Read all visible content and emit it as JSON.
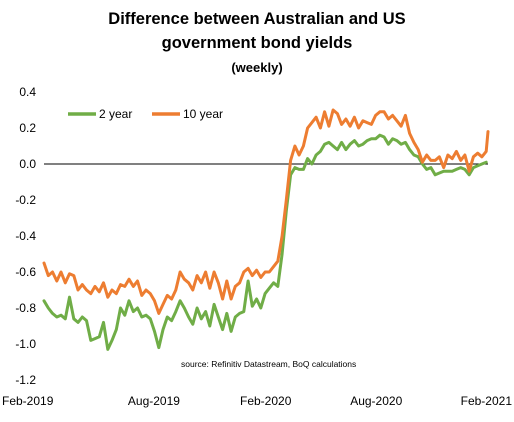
{
  "chart_data": {
    "type": "line",
    "title_line1": "Difference between Australian and US",
    "title_line2": "government bond yields",
    "subtitle": "(weekly)",
    "xlabel": "",
    "ylabel": "",
    "ylim": [
      -1.2,
      0.4
    ],
    "yticks": [
      0.4,
      0.2,
      0.0,
      -0.2,
      -0.4,
      -0.6,
      -0.8,
      -1.0,
      -1.2
    ],
    "ytick_labels": [
      "0.4",
      "0.2",
      "0.0",
      "-0.2",
      "-0.4",
      "-0.6",
      "-0.8",
      "-1.0",
      "-1.2"
    ],
    "x_start": "2019-02-01",
    "x_end": "2021-02-01",
    "xticks": [
      "2019-02-01",
      "2019-08-01",
      "2020-02-01",
      "2020-08-01",
      "2021-02-01"
    ],
    "xtick_labels": [
      "Feb-2019",
      "Aug-2019",
      "Feb-2020",
      "Aug-2020",
      "Feb-2021"
    ],
    "grid": false,
    "legend_placement": "top-left",
    "source_note": "source:  Refinitiv Datastream, BoQ calculations",
    "series": [
      {
        "name": "2 year",
        "color": "#70ad47",
        "points": [
          [
            "2019-02-01",
            -0.76
          ],
          [
            "2019-02-08",
            -0.8
          ],
          [
            "2019-02-15",
            -0.83
          ],
          [
            "2019-02-22",
            -0.85
          ],
          [
            "2019-03-01",
            -0.84
          ],
          [
            "2019-03-08",
            -0.86
          ],
          [
            "2019-03-15",
            -0.74
          ],
          [
            "2019-03-22",
            -0.86
          ],
          [
            "2019-03-29",
            -0.88
          ],
          [
            "2019-04-05",
            -0.85
          ],
          [
            "2019-04-12",
            -0.87
          ],
          [
            "2019-04-19",
            -0.98
          ],
          [
            "2019-04-26",
            -0.97
          ],
          [
            "2019-05-03",
            -0.96
          ],
          [
            "2019-05-10",
            -0.88
          ],
          [
            "2019-05-17",
            -1.03
          ],
          [
            "2019-05-24",
            -0.98
          ],
          [
            "2019-05-31",
            -0.92
          ],
          [
            "2019-06-07",
            -0.8
          ],
          [
            "2019-06-14",
            -0.84
          ],
          [
            "2019-06-21",
            -0.76
          ],
          [
            "2019-06-28",
            -0.82
          ],
          [
            "2019-07-05",
            -0.8
          ],
          [
            "2019-07-12",
            -0.85
          ],
          [
            "2019-07-19",
            -0.84
          ],
          [
            "2019-07-26",
            -0.86
          ],
          [
            "2019-08-02",
            -0.93
          ],
          [
            "2019-08-09",
            -1.02
          ],
          [
            "2019-08-16",
            -0.92
          ],
          [
            "2019-08-23",
            -0.85
          ],
          [
            "2019-08-30",
            -0.87
          ],
          [
            "2019-09-06",
            -0.82
          ],
          [
            "2019-09-13",
            -0.76
          ],
          [
            "2019-09-20",
            -0.8
          ],
          [
            "2019-09-27",
            -0.85
          ],
          [
            "2019-10-04",
            -0.89
          ],
          [
            "2019-10-11",
            -0.8
          ],
          [
            "2019-10-18",
            -0.86
          ],
          [
            "2019-10-25",
            -0.82
          ],
          [
            "2019-11-01",
            -0.9
          ],
          [
            "2019-11-08",
            -0.78
          ],
          [
            "2019-11-15",
            -0.85
          ],
          [
            "2019-11-22",
            -0.92
          ],
          [
            "2019-11-29",
            -0.83
          ],
          [
            "2019-12-06",
            -0.93
          ],
          [
            "2019-12-13",
            -0.85
          ],
          [
            "2019-12-20",
            -0.83
          ],
          [
            "2019-12-27",
            -0.82
          ],
          [
            "2020-01-03",
            -0.65
          ],
          [
            "2020-01-10",
            -0.79
          ],
          [
            "2020-01-17",
            -0.75
          ],
          [
            "2020-01-24",
            -0.8
          ],
          [
            "2020-01-31",
            -0.72
          ],
          [
            "2020-02-07",
            -0.69
          ],
          [
            "2020-02-14",
            -0.66
          ],
          [
            "2020-02-21",
            -0.68
          ],
          [
            "2020-02-28",
            -0.5
          ],
          [
            "2020-03-06",
            -0.26
          ],
          [
            "2020-03-13",
            -0.06
          ],
          [
            "2020-03-20",
            -0.02
          ],
          [
            "2020-03-27",
            -0.03
          ],
          [
            "2020-04-03",
            -0.03
          ],
          [
            "2020-04-10",
            0.03
          ],
          [
            "2020-04-17",
            0.0
          ],
          [
            "2020-04-24",
            0.05
          ],
          [
            "2020-05-01",
            0.07
          ],
          [
            "2020-05-08",
            0.11
          ],
          [
            "2020-05-15",
            0.12
          ],
          [
            "2020-05-22",
            0.1
          ],
          [
            "2020-05-29",
            0.08
          ],
          [
            "2020-06-05",
            0.12
          ],
          [
            "2020-06-12",
            0.08
          ],
          [
            "2020-06-19",
            0.11
          ],
          [
            "2020-06-26",
            0.13
          ],
          [
            "2020-07-03",
            0.1
          ],
          [
            "2020-07-10",
            0.11
          ],
          [
            "2020-07-17",
            0.13
          ],
          [
            "2020-07-24",
            0.14
          ],
          [
            "2020-07-31",
            0.14
          ],
          [
            "2020-08-07",
            0.16
          ],
          [
            "2020-08-14",
            0.15
          ],
          [
            "2020-08-21",
            0.11
          ],
          [
            "2020-08-28",
            0.14
          ],
          [
            "2020-09-04",
            0.13
          ],
          [
            "2020-09-11",
            0.11
          ],
          [
            "2020-09-18",
            0.12
          ],
          [
            "2020-09-25",
            0.08
          ],
          [
            "2020-10-02",
            0.05
          ],
          [
            "2020-10-09",
            0.04
          ],
          [
            "2020-10-16",
            0.0
          ],
          [
            "2020-10-23",
            -0.03
          ],
          [
            "2020-10-30",
            -0.02
          ],
          [
            "2020-11-06",
            -0.06
          ],
          [
            "2020-11-13",
            -0.05
          ],
          [
            "2020-11-20",
            -0.04
          ],
          [
            "2020-11-27",
            -0.04
          ],
          [
            "2020-12-04",
            -0.04
          ],
          [
            "2020-12-11",
            -0.03
          ],
          [
            "2020-12-18",
            -0.02
          ],
          [
            "2020-12-25",
            -0.03
          ],
          [
            "2021-01-01",
            -0.06
          ],
          [
            "2021-01-08",
            -0.02
          ],
          [
            "2021-01-15",
            -0.01
          ],
          [
            "2021-01-22",
            0.0
          ],
          [
            "2021-01-29",
            0.01
          ]
        ]
      },
      {
        "name": "10 year",
        "color": "#ed7d31",
        "points": [
          [
            "2019-02-01",
            -0.55
          ],
          [
            "2019-02-08",
            -0.62
          ],
          [
            "2019-02-15",
            -0.6
          ],
          [
            "2019-02-22",
            -0.65
          ],
          [
            "2019-03-01",
            -0.6
          ],
          [
            "2019-03-08",
            -0.66
          ],
          [
            "2019-03-15",
            -0.61
          ],
          [
            "2019-03-22",
            -0.62
          ],
          [
            "2019-03-29",
            -0.7
          ],
          [
            "2019-04-05",
            -0.67
          ],
          [
            "2019-04-12",
            -0.7
          ],
          [
            "2019-04-19",
            -0.72
          ],
          [
            "2019-04-26",
            -0.68
          ],
          [
            "2019-05-03",
            -0.71
          ],
          [
            "2019-05-10",
            -0.66
          ],
          [
            "2019-05-17",
            -0.74
          ],
          [
            "2019-05-24",
            -0.7
          ],
          [
            "2019-05-31",
            -0.72
          ],
          [
            "2019-06-07",
            -0.67
          ],
          [
            "2019-06-14",
            -0.68
          ],
          [
            "2019-06-21",
            -0.64
          ],
          [
            "2019-06-28",
            -0.68
          ],
          [
            "2019-07-05",
            -0.65
          ],
          [
            "2019-07-12",
            -0.73
          ],
          [
            "2019-07-19",
            -0.7
          ],
          [
            "2019-07-26",
            -0.72
          ],
          [
            "2019-08-02",
            -0.76
          ],
          [
            "2019-08-09",
            -0.83
          ],
          [
            "2019-08-16",
            -0.78
          ],
          [
            "2019-08-23",
            -0.73
          ],
          [
            "2019-08-30",
            -0.75
          ],
          [
            "2019-09-06",
            -0.7
          ],
          [
            "2019-09-13",
            -0.6
          ],
          [
            "2019-09-20",
            -0.64
          ],
          [
            "2019-09-27",
            -0.66
          ],
          [
            "2019-10-04",
            -0.7
          ],
          [
            "2019-10-11",
            -0.62
          ],
          [
            "2019-10-18",
            -0.66
          ],
          [
            "2019-10-25",
            -0.6
          ],
          [
            "2019-11-01",
            -0.69
          ],
          [
            "2019-11-08",
            -0.6
          ],
          [
            "2019-11-15",
            -0.66
          ],
          [
            "2019-11-22",
            -0.75
          ],
          [
            "2019-11-29",
            -0.65
          ],
          [
            "2019-12-06",
            -0.75
          ],
          [
            "2019-12-13",
            -0.68
          ],
          [
            "2019-12-20",
            -0.66
          ],
          [
            "2019-12-27",
            -0.6
          ],
          [
            "2020-01-03",
            -0.58
          ],
          [
            "2020-01-10",
            -0.62
          ],
          [
            "2020-01-17",
            -0.59
          ],
          [
            "2020-01-24",
            -0.63
          ],
          [
            "2020-01-31",
            -0.6
          ],
          [
            "2020-02-07",
            -0.6
          ],
          [
            "2020-02-14",
            -0.57
          ],
          [
            "2020-02-21",
            -0.54
          ],
          [
            "2020-02-28",
            -0.4
          ],
          [
            "2020-03-06",
            -0.2
          ],
          [
            "2020-03-13",
            0.02
          ],
          [
            "2020-03-20",
            0.1
          ],
          [
            "2020-03-27",
            0.05
          ],
          [
            "2020-04-03",
            0.1
          ],
          [
            "2020-04-10",
            0.2
          ],
          [
            "2020-04-17",
            0.23
          ],
          [
            "2020-04-24",
            0.26
          ],
          [
            "2020-05-01",
            0.2
          ],
          [
            "2020-05-08",
            0.29
          ],
          [
            "2020-05-15",
            0.21
          ],
          [
            "2020-05-22",
            0.3
          ],
          [
            "2020-05-29",
            0.28
          ],
          [
            "2020-06-05",
            0.22
          ],
          [
            "2020-06-12",
            0.25
          ],
          [
            "2020-06-19",
            0.21
          ],
          [
            "2020-06-26",
            0.26
          ],
          [
            "2020-07-03",
            0.2
          ],
          [
            "2020-07-10",
            0.24
          ],
          [
            "2020-07-17",
            0.23
          ],
          [
            "2020-07-24",
            0.22
          ],
          [
            "2020-07-31",
            0.27
          ],
          [
            "2020-08-07",
            0.29
          ],
          [
            "2020-08-14",
            0.29
          ],
          [
            "2020-08-21",
            0.25
          ],
          [
            "2020-08-28",
            0.27
          ],
          [
            "2020-09-04",
            0.24
          ],
          [
            "2020-09-11",
            0.21
          ],
          [
            "2020-09-18",
            0.27
          ],
          [
            "2020-09-25",
            0.17
          ],
          [
            "2020-10-02",
            0.12
          ],
          [
            "2020-10-09",
            0.08
          ],
          [
            "2020-10-16",
            0.01
          ],
          [
            "2020-10-23",
            0.05
          ],
          [
            "2020-10-30",
            0.02
          ],
          [
            "2020-11-06",
            0.02
          ],
          [
            "2020-11-13",
            0.04
          ],
          [
            "2020-11-20",
            -0.02
          ],
          [
            "2020-11-27",
            0.05
          ],
          [
            "2020-12-04",
            0.03
          ],
          [
            "2020-12-11",
            0.07
          ],
          [
            "2020-12-18",
            0.02
          ],
          [
            "2020-12-25",
            0.05
          ],
          [
            "2021-01-01",
            -0.04
          ],
          [
            "2021-01-08",
            0.04
          ],
          [
            "2021-01-15",
            0.06
          ],
          [
            "2021-01-22",
            0.04
          ],
          [
            "2021-01-29",
            0.07
          ],
          [
            "2021-02-01",
            0.18
          ]
        ]
      }
    ]
  }
}
